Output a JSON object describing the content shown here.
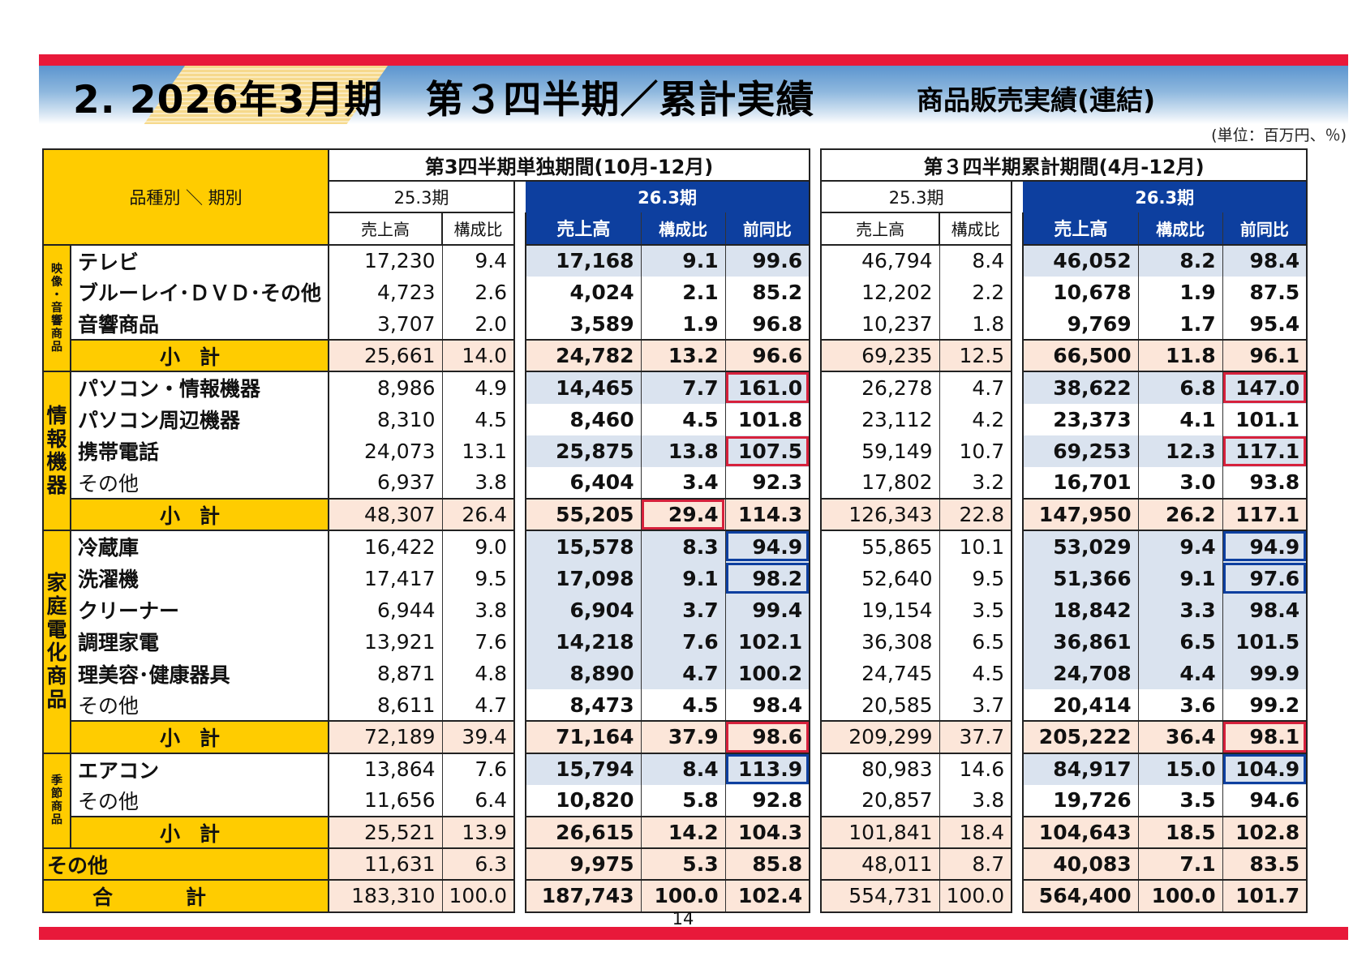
{
  "header": {
    "title_part1": "2. 2026年3月期",
    "title_part2": "第３四半期／累計実績",
    "subtitle": "商品販売実績(連結)",
    "unit_note": "(単位：百万円、％)"
  },
  "table": {
    "corner_label": "品種別 ＼ 期別",
    "section_q3": "第3四半期単独期間(10月-12月)",
    "section_cum": "第３四半期累計期間(4月-12月)",
    "period_prev": "25.3期",
    "period_curr": "26.3期",
    "col_sales": "売上高",
    "col_ratio": "構成比",
    "col_yoy": "前同比",
    "subtotal_label": "小計",
    "categories": [
      {
        "label": "映像・音響商品"
      },
      {
        "label": "情報機器"
      },
      {
        "label": "家庭電化商品"
      },
      {
        "label": "季節商品"
      }
    ],
    "rows": [
      {
        "name": "テレビ",
        "q3_prev_sales": "17,230",
        "q3_prev_ratio": "9.4",
        "q3_sales": "17,168",
        "q3_ratio": "9.1",
        "q3_yoy": "99.6",
        "cum_prev_sales": "46,794",
        "cum_prev_ratio": "8.4",
        "cum_sales": "46,052",
        "cum_ratio": "8.2",
        "cum_yoy": "98.4"
      },
      {
        "name": "ブルーレイ･ＤＶＤ･その他",
        "q3_prev_sales": "4,723",
        "q3_prev_ratio": "2.6",
        "q3_sales": "4,024",
        "q3_ratio": "2.1",
        "q3_yoy": "85.2",
        "cum_prev_sales": "12,202",
        "cum_prev_ratio": "2.2",
        "cum_sales": "10,678",
        "cum_ratio": "1.9",
        "cum_yoy": "87.5"
      },
      {
        "name": "音響商品",
        "q3_prev_sales": "3,707",
        "q3_prev_ratio": "2.0",
        "q3_sales": "3,589",
        "q3_ratio": "1.9",
        "q3_yoy": "96.8",
        "cum_prev_sales": "10,237",
        "cum_prev_ratio": "1.8",
        "cum_sales": "9,769",
        "cum_ratio": "1.7",
        "cum_yoy": "95.4"
      },
      {
        "name": "小計",
        "q3_prev_sales": "25,661",
        "q3_prev_ratio": "14.0",
        "q3_sales": "24,782",
        "q3_ratio": "13.2",
        "q3_yoy": "96.6",
        "cum_prev_sales": "69,235",
        "cum_prev_ratio": "12.5",
        "cum_sales": "66,500",
        "cum_ratio": "11.8",
        "cum_yoy": "96.1"
      },
      {
        "name": "パソコン・情報機器",
        "q3_prev_sales": "8,986",
        "q3_prev_ratio": "4.9",
        "q3_sales": "14,465",
        "q3_ratio": "7.7",
        "q3_yoy": "161.0",
        "cum_prev_sales": "26,278",
        "cum_prev_ratio": "4.7",
        "cum_sales": "38,622",
        "cum_ratio": "6.8",
        "cum_yoy": "147.0"
      },
      {
        "name": "パソコン周辺機器",
        "q3_prev_sales": "8,310",
        "q3_prev_ratio": "4.5",
        "q3_sales": "8,460",
        "q3_ratio": "4.5",
        "q3_yoy": "101.8",
        "cum_prev_sales": "23,112",
        "cum_prev_ratio": "4.2",
        "cum_sales": "23,373",
        "cum_ratio": "4.1",
        "cum_yoy": "101.1"
      },
      {
        "name": "携帯電話",
        "q3_prev_sales": "24,073",
        "q3_prev_ratio": "13.1",
        "q3_sales": "25,875",
        "q3_ratio": "13.8",
        "q3_yoy": "107.5",
        "cum_prev_sales": "59,149",
        "cum_prev_ratio": "10.7",
        "cum_sales": "69,253",
        "cum_ratio": "12.3",
        "cum_yoy": "117.1"
      },
      {
        "name": "その他",
        "q3_prev_sales": "6,937",
        "q3_prev_ratio": "3.8",
        "q3_sales": "6,404",
        "q3_ratio": "3.4",
        "q3_yoy": "92.3",
        "cum_prev_sales": "17,802",
        "cum_prev_ratio": "3.2",
        "cum_sales": "16,701",
        "cum_ratio": "3.0",
        "cum_yoy": "93.8"
      },
      {
        "name": "小計",
        "q3_prev_sales": "48,307",
        "q3_prev_ratio": "26.4",
        "q3_sales": "55,205",
        "q3_ratio": "29.4",
        "q3_yoy": "114.3",
        "cum_prev_sales": "126,343",
        "cum_prev_ratio": "22.8",
        "cum_sales": "147,950",
        "cum_ratio": "26.2",
        "cum_yoy": "117.1"
      },
      {
        "name": "冷蔵庫",
        "q3_prev_sales": "16,422",
        "q3_prev_ratio": "9.0",
        "q3_sales": "15,578",
        "q3_ratio": "8.3",
        "q3_yoy": "94.9",
        "cum_prev_sales": "55,865",
        "cum_prev_ratio": "10.1",
        "cum_sales": "53,029",
        "cum_ratio": "9.4",
        "cum_yoy": "94.9"
      },
      {
        "name": "洗濯機",
        "q3_prev_sales": "17,417",
        "q3_prev_ratio": "9.5",
        "q3_sales": "17,098",
        "q3_ratio": "9.1",
        "q3_yoy": "98.2",
        "cum_prev_sales": "52,640",
        "cum_prev_ratio": "9.5",
        "cum_sales": "51,366",
        "cum_ratio": "9.1",
        "cum_yoy": "97.6"
      },
      {
        "name": "クリーナー",
        "q3_prev_sales": "6,944",
        "q3_prev_ratio": "3.8",
        "q3_sales": "6,904",
        "q3_ratio": "3.7",
        "q3_yoy": "99.4",
        "cum_prev_sales": "19,154",
        "cum_prev_ratio": "3.5",
        "cum_sales": "18,842",
        "cum_ratio": "3.3",
        "cum_yoy": "98.4"
      },
      {
        "name": "調理家電",
        "q3_prev_sales": "13,921",
        "q3_prev_ratio": "7.6",
        "q3_sales": "14,218",
        "q3_ratio": "7.6",
        "q3_yoy": "102.1",
        "cum_prev_sales": "36,308",
        "cum_prev_ratio": "6.5",
        "cum_sales": "36,861",
        "cum_ratio": "6.5",
        "cum_yoy": "101.5"
      },
      {
        "name": "理美容･健康器具",
        "q3_prev_sales": "8,871",
        "q3_prev_ratio": "4.8",
        "q3_sales": "8,890",
        "q3_ratio": "4.7",
        "q3_yoy": "100.2",
        "cum_prev_sales": "24,745",
        "cum_prev_ratio": "4.5",
        "cum_sales": "24,708",
        "cum_ratio": "4.4",
        "cum_yoy": "99.9"
      },
      {
        "name": "その他",
        "q3_prev_sales": "8,611",
        "q3_prev_ratio": "4.7",
        "q3_sales": "8,473",
        "q3_ratio": "4.5",
        "q3_yoy": "98.4",
        "cum_prev_sales": "20,585",
        "cum_prev_ratio": "3.7",
        "cum_sales": "20,414",
        "cum_ratio": "3.6",
        "cum_yoy": "99.2"
      },
      {
        "name": "小計",
        "q3_prev_sales": "72,189",
        "q3_prev_ratio": "39.4",
        "q3_sales": "71,164",
        "q3_ratio": "37.9",
        "q3_yoy": "98.6",
        "cum_prev_sales": "209,299",
        "cum_prev_ratio": "37.7",
        "cum_sales": "205,222",
        "cum_ratio": "36.4",
        "cum_yoy": "98.1"
      },
      {
        "name": "エアコン",
        "q3_prev_sales": "13,864",
        "q3_prev_ratio": "7.6",
        "q3_sales": "15,794",
        "q3_ratio": "8.4",
        "q3_yoy": "113.9",
        "cum_prev_sales": "80,983",
        "cum_prev_ratio": "14.6",
        "cum_sales": "84,917",
        "cum_ratio": "15.0",
        "cum_yoy": "104.9"
      },
      {
        "name": "その他",
        "q3_prev_sales": "11,656",
        "q3_prev_ratio": "6.4",
        "q3_sales": "10,820",
        "q3_ratio": "5.8",
        "q3_yoy": "92.8",
        "cum_prev_sales": "20,857",
        "cum_prev_ratio": "3.8",
        "cum_sales": "19,726",
        "cum_ratio": "3.5",
        "cum_yoy": "94.6"
      },
      {
        "name": "小計",
        "q3_prev_sales": "25,521",
        "q3_prev_ratio": "13.9",
        "q3_sales": "26,615",
        "q3_ratio": "14.2",
        "q3_yoy": "104.3",
        "cum_prev_sales": "101,841",
        "cum_prev_ratio": "18.4",
        "cum_sales": "104,643",
        "cum_ratio": "18.5",
        "cum_yoy": "102.8"
      },
      {
        "name": "その他",
        "q3_prev_sales": "11,631",
        "q3_prev_ratio": "6.3",
        "q3_sales": "9,975",
        "q3_ratio": "5.3",
        "q3_yoy": "85.8",
        "cum_prev_sales": "48,011",
        "cum_prev_ratio": "8.7",
        "cum_sales": "40,083",
        "cum_ratio": "7.1",
        "cum_yoy": "83.5"
      },
      {
        "name": "合計",
        "q3_prev_sales": "183,310",
        "q3_prev_ratio": "100.0",
        "q3_sales": "187,743",
        "q3_ratio": "100.0",
        "q3_yoy": "102.4",
        "cum_prev_sales": "554,731",
        "cum_prev_ratio": "100.0",
        "cum_sales": "564,400",
        "cum_ratio": "100.0",
        "cum_yoy": "101.7"
      }
    ]
  },
  "colors": {
    "brand_red": "#e8193a",
    "header_yellow": "#ffcc00",
    "header_blue": "#0d3f9f",
    "subtotal_peach": "#fce6d9",
    "row_light_blue": "#dae3ef",
    "highlight_red": "#d6213c",
    "highlight_blue": "#0d3f9f"
  },
  "footer": {
    "page_number": "14"
  }
}
